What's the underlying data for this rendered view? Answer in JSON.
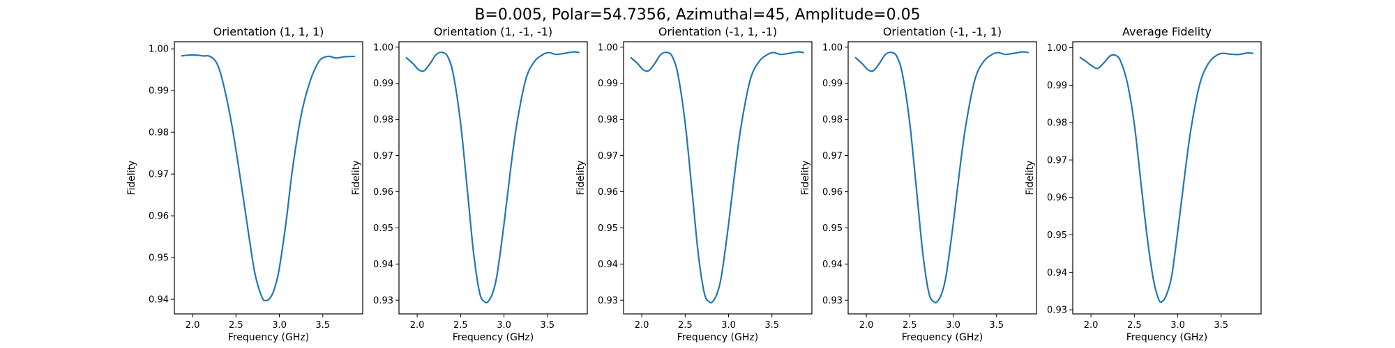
{
  "figure": {
    "suptitle": "B=0.005, Polar=54.7356, Azimuthal=45, Amplitude=0.05"
  },
  "colors": {
    "line": "#1f77b4",
    "axes": "#000000",
    "background": "#ffffff"
  },
  "chart_data": [
    {
      "type": "line",
      "title": "Orientation (1, 1, 1)",
      "xlabel": "Frequency (GHz)",
      "ylabel": "Fidelity",
      "xlim": [
        1.79,
        3.96
      ],
      "ylim": [
        0.9365,
        1.0017
      ],
      "xticks": [
        "2.0",
        "2.5",
        "3.0",
        "3.5"
      ],
      "yticks": [
        "0.94",
        "0.95",
        "0.96",
        "0.97",
        "0.98",
        "0.99",
        "1.00"
      ],
      "grid": false,
      "x": [
        1.87,
        1.95,
        2.05,
        2.12,
        2.2,
        2.28,
        2.35,
        2.45,
        2.55,
        2.65,
        2.72,
        2.8,
        2.85,
        2.9,
        2.95,
        3.0,
        3.08,
        3.15,
        3.25,
        3.35,
        3.45,
        3.52,
        3.58,
        3.65,
        3.75,
        3.87
      ],
      "y": [
        0.9983,
        0.9985,
        0.9985,
        0.9983,
        0.9982,
        0.9965,
        0.992,
        0.982,
        0.969,
        0.955,
        0.946,
        0.9405,
        0.9397,
        0.9405,
        0.943,
        0.9475,
        0.959,
        0.971,
        0.984,
        0.992,
        0.9968,
        0.998,
        0.9982,
        0.9978,
        0.9981,
        0.9982
      ]
    },
    {
      "type": "line",
      "title": "Orientation (1, -1, -1)",
      "xlabel": "Frequency (GHz)",
      "ylabel": "Fidelity",
      "xlim": [
        1.79,
        3.96
      ],
      "ylim": [
        0.9262,
        1.0015
      ],
      "xticks": [
        "2.0",
        "2.5",
        "3.0",
        "3.5"
      ],
      "yticks": [
        "0.93",
        "0.94",
        "0.95",
        "0.96",
        "0.97",
        "0.98",
        "0.99",
        "1.00"
      ],
      "grid": false,
      "x": [
        1.87,
        1.95,
        2.02,
        2.08,
        2.15,
        2.22,
        2.3,
        2.36,
        2.42,
        2.5,
        2.58,
        2.65,
        2.72,
        2.78,
        2.82,
        2.87,
        2.92,
        3.0,
        3.08,
        3.15,
        3.25,
        3.35,
        3.45,
        3.52,
        3.6,
        3.7,
        3.8,
        3.87
      ],
      "y": [
        0.9972,
        0.9955,
        0.9937,
        0.9935,
        0.9955,
        0.998,
        0.9985,
        0.997,
        0.992,
        0.979,
        0.96,
        0.943,
        0.932,
        0.9295,
        0.9297,
        0.932,
        0.937,
        0.951,
        0.967,
        0.979,
        0.991,
        0.996,
        0.998,
        0.9985,
        0.998,
        0.9983,
        0.9987,
        0.9985
      ]
    },
    {
      "type": "line",
      "title": "Orientation (-1, 1, -1)",
      "xlabel": "Frequency (GHz)",
      "ylabel": "Fidelity",
      "xlim": [
        1.79,
        3.96
      ],
      "ylim": [
        0.9262,
        1.0015
      ],
      "xticks": [
        "2.0",
        "2.5",
        "3.0",
        "3.5"
      ],
      "yticks": [
        "0.93",
        "0.94",
        "0.95",
        "0.96",
        "0.97",
        "0.98",
        "0.99",
        "1.00"
      ],
      "grid": false,
      "x": [
        1.87,
        1.95,
        2.02,
        2.08,
        2.15,
        2.22,
        2.3,
        2.36,
        2.42,
        2.5,
        2.58,
        2.65,
        2.72,
        2.78,
        2.82,
        2.87,
        2.92,
        3.0,
        3.08,
        3.15,
        3.25,
        3.35,
        3.45,
        3.52,
        3.6,
        3.7,
        3.8,
        3.87
      ],
      "y": [
        0.9972,
        0.9955,
        0.9937,
        0.9935,
        0.9955,
        0.998,
        0.9985,
        0.997,
        0.992,
        0.979,
        0.96,
        0.943,
        0.932,
        0.9295,
        0.9297,
        0.932,
        0.937,
        0.951,
        0.967,
        0.979,
        0.991,
        0.996,
        0.998,
        0.9985,
        0.998,
        0.9983,
        0.9987,
        0.9985
      ]
    },
    {
      "type": "line",
      "title": "Orientation (-1, -1, 1)",
      "xlabel": "Frequency (GHz)",
      "ylabel": "Fidelity",
      "xlim": [
        1.79,
        3.96
      ],
      "ylim": [
        0.9262,
        1.0015
      ],
      "xticks": [
        "2.0",
        "2.5",
        "3.0",
        "3.5"
      ],
      "yticks": [
        "0.93",
        "0.94",
        "0.95",
        "0.96",
        "0.97",
        "0.98",
        "0.99",
        "1.00"
      ],
      "grid": false,
      "x": [
        1.87,
        1.95,
        2.02,
        2.08,
        2.15,
        2.22,
        2.3,
        2.36,
        2.42,
        2.5,
        2.58,
        2.65,
        2.72,
        2.78,
        2.82,
        2.87,
        2.92,
        3.0,
        3.08,
        3.15,
        3.25,
        3.35,
        3.45,
        3.52,
        3.6,
        3.7,
        3.8,
        3.87
      ],
      "y": [
        0.9972,
        0.9955,
        0.9937,
        0.9935,
        0.9955,
        0.998,
        0.9985,
        0.997,
        0.992,
        0.979,
        0.96,
        0.943,
        0.932,
        0.9295,
        0.9297,
        0.932,
        0.937,
        0.951,
        0.967,
        0.979,
        0.991,
        0.996,
        0.998,
        0.9985,
        0.998,
        0.9983,
        0.9987,
        0.9985
      ]
    },
    {
      "type": "line",
      "title": "Average Fidelity",
      "xlabel": "Frequency (GHz)",
      "ylabel": "Fidelity",
      "xlim": [
        1.79,
        3.96
      ],
      "ylim": [
        0.9289,
        1.0016
      ],
      "xticks": [
        "2.0",
        "2.5",
        "3.0",
        "3.5"
      ],
      "yticks": [
        "0.93",
        "0.94",
        "0.95",
        "0.96",
        "0.97",
        "0.98",
        "0.99",
        "1.00"
      ],
      "grid": false,
      "x": [
        1.87,
        1.95,
        2.02,
        2.08,
        2.15,
        2.22,
        2.28,
        2.34,
        2.42,
        2.5,
        2.58,
        2.65,
        2.72,
        2.78,
        2.82,
        2.87,
        2.93,
        3.0,
        3.08,
        3.15,
        3.25,
        3.35,
        3.45,
        3.52,
        3.6,
        3.7,
        3.8,
        3.87
      ],
      "y": [
        0.9975,
        0.9962,
        0.995,
        0.9945,
        0.996,
        0.9978,
        0.998,
        0.9965,
        0.9905,
        0.9795,
        0.963,
        0.949,
        0.938,
        0.9328,
        0.9322,
        0.934,
        0.939,
        0.951,
        0.966,
        0.978,
        0.99,
        0.9957,
        0.998,
        0.9985,
        0.9983,
        0.9982,
        0.9986,
        0.9985
      ]
    }
  ]
}
